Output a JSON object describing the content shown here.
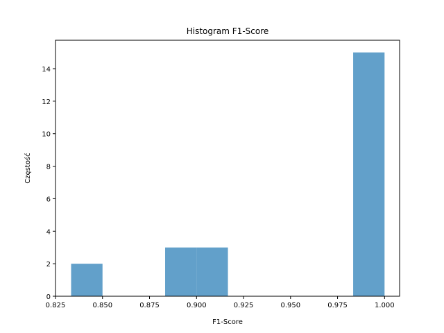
{
  "chart_data": {
    "type": "bar",
    "title": "Histogram F1-Score",
    "xlabel": "F1-Score",
    "ylabel": "Częstość",
    "xlim": [
      0.825,
      1.008
    ],
    "ylim": [
      0,
      15.75
    ],
    "xticks": [
      0.825,
      0.85,
      0.875,
      0.9,
      0.925,
      0.95,
      0.975,
      1.0
    ],
    "xtick_labels": [
      "0.825",
      "0.850",
      "0.875",
      "0.900",
      "0.925",
      "0.950",
      "0.975",
      "1.000"
    ],
    "yticks": [
      0,
      2,
      4,
      6,
      8,
      10,
      12,
      14
    ],
    "ytick_labels": [
      "0",
      "2",
      "4",
      "6",
      "8",
      "10",
      "12",
      "14"
    ],
    "bar_color": "#1f77b4",
    "bar_alpha": 0.7,
    "grid": false,
    "bins": [
      {
        "x0": 0.8333,
        "x1": 0.85,
        "count": 2
      },
      {
        "x0": 0.85,
        "x1": 0.8667,
        "count": 0
      },
      {
        "x0": 0.8667,
        "x1": 0.8833,
        "count": 0
      },
      {
        "x0": 0.8833,
        "x1": 0.9,
        "count": 3
      },
      {
        "x0": 0.9,
        "x1": 0.9167,
        "count": 3
      },
      {
        "x0": 0.9167,
        "x1": 0.9333,
        "count": 0
      },
      {
        "x0": 0.9333,
        "x1": 0.95,
        "count": 0
      },
      {
        "x0": 0.95,
        "x1": 0.9667,
        "count": 0
      },
      {
        "x0": 0.9667,
        "x1": 0.9833,
        "count": 0
      },
      {
        "x0": 0.9833,
        "x1": 1.0,
        "count": 15
      }
    ]
  }
}
